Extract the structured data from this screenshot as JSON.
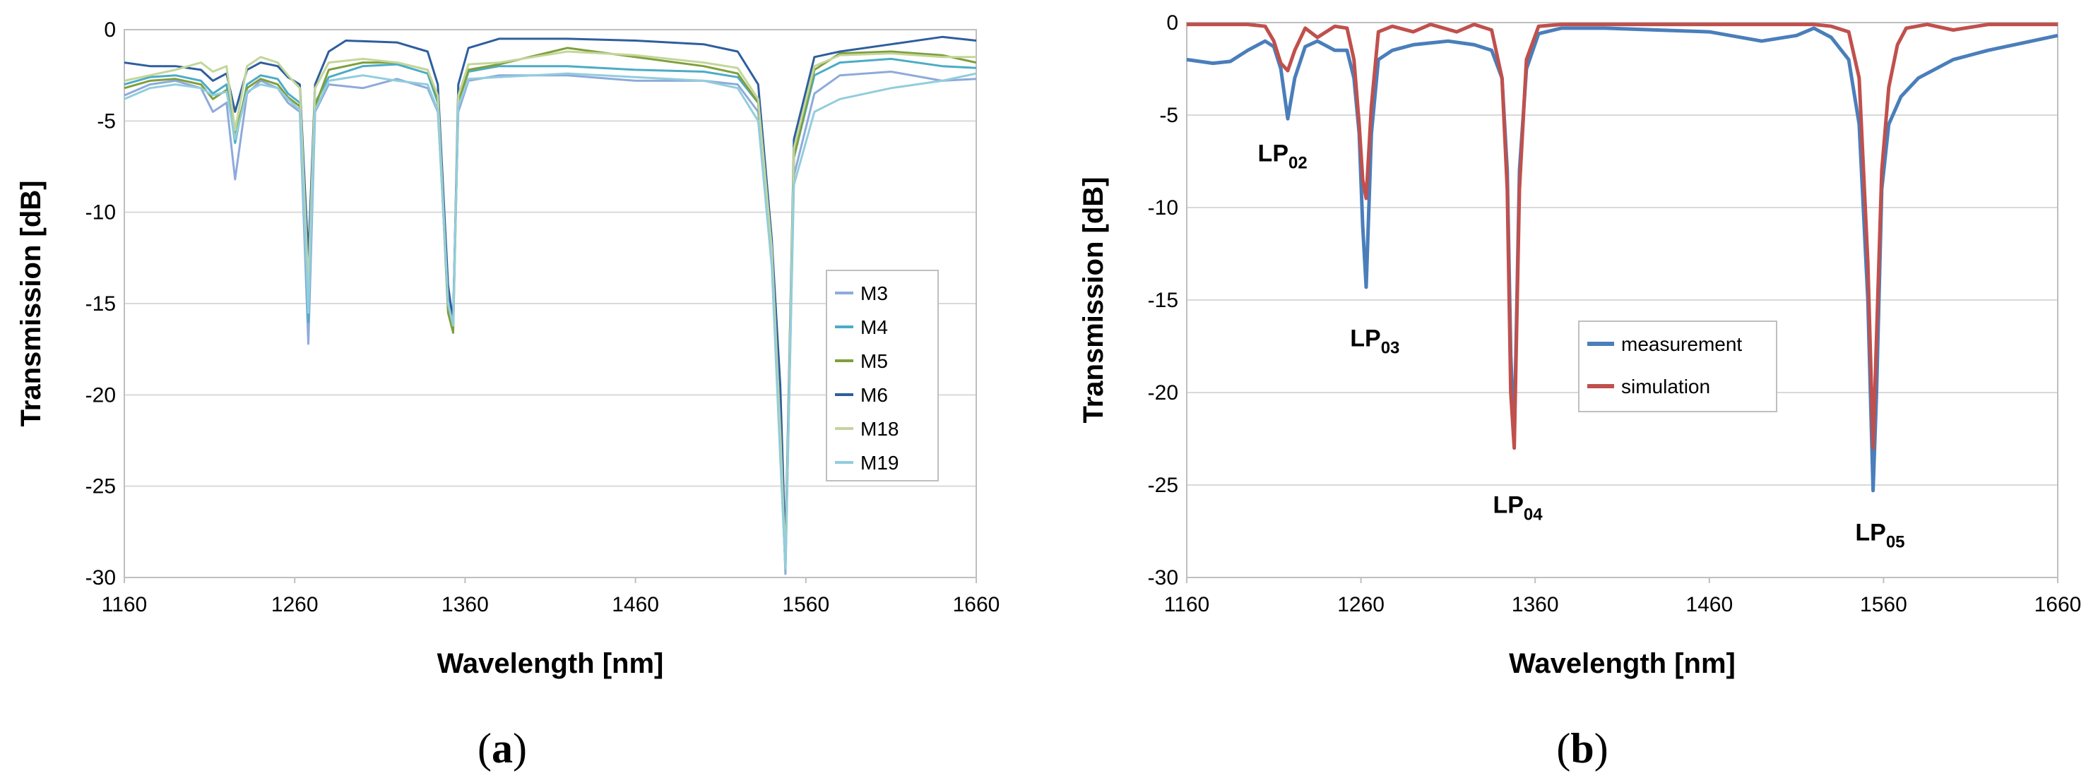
{
  "chart_data": [
    {
      "type": "line",
      "panel_label": "(a)",
      "title": "",
      "xlabel": "Wavelength [nm]",
      "ylabel": "Transmission [dB]",
      "xlim": [
        1160,
        1660
      ],
      "ylim": [
        -30,
        0
      ],
      "x_ticks": [
        "1160",
        "1260",
        "1360",
        "1460",
        "1560",
        "1660"
      ],
      "y_ticks": [
        "0",
        "-5",
        "-10",
        "-15",
        "-20",
        "-25",
        "-30"
      ],
      "legend": [
        "M3",
        "M4",
        "M5",
        "M6",
        "M18",
        "M19"
      ],
      "legend_position": "right",
      "series": [
        {
          "name": "M3",
          "color": "#8eaadb",
          "x": [
            1160,
            1175,
            1190,
            1205,
            1212,
            1220,
            1225,
            1232,
            1240,
            1250,
            1256,
            1263,
            1268,
            1272,
            1280,
            1300,
            1320,
            1338,
            1344,
            1350,
            1353,
            1356,
            1362,
            1380,
            1420,
            1460,
            1500,
            1520,
            1532,
            1540,
            1545,
            1548,
            1553,
            1565,
            1580,
            1610,
            1640,
            1660
          ],
          "y": [
            -3.6,
            -3.0,
            -2.8,
            -3.2,
            -4.5,
            -4.0,
            -8.2,
            -3.5,
            -2.8,
            -3.2,
            -4.0,
            -4.5,
            -17.2,
            -4.5,
            -3.0,
            -3.2,
            -2.7,
            -3.2,
            -4.5,
            -14.5,
            -15.5,
            -4.5,
            -2.8,
            -2.5,
            -2.5,
            -2.8,
            -2.8,
            -3.0,
            -4.5,
            -12.0,
            -22.0,
            -29.8,
            -8.0,
            -3.5,
            -2.5,
            -2.3,
            -2.8,
            -2.7
          ]
        },
        {
          "name": "M4",
          "color": "#4bacc6",
          "x": [
            1160,
            1175,
            1190,
            1205,
            1212,
            1220,
            1225,
            1232,
            1240,
            1250,
            1256,
            1263,
            1268,
            1272,
            1280,
            1300,
            1320,
            1338,
            1344,
            1350,
            1353,
            1356,
            1362,
            1380,
            1420,
            1460,
            1500,
            1520,
            1532,
            1540,
            1545,
            1548,
            1553,
            1565,
            1580,
            1610,
            1640,
            1660
          ],
          "y": [
            -3.0,
            -2.6,
            -2.5,
            -2.8,
            -3.5,
            -3.0,
            -6.2,
            -3.0,
            -2.5,
            -2.7,
            -3.5,
            -4.0,
            -16.0,
            -4.0,
            -2.6,
            -2.0,
            -1.9,
            -2.4,
            -4.0,
            -15.0,
            -16.0,
            -4.0,
            -2.3,
            -2.0,
            -2.0,
            -2.2,
            -2.3,
            -2.6,
            -4.0,
            -12.0,
            -22.5,
            -29.0,
            -7.0,
            -2.5,
            -1.8,
            -1.6,
            -2.0,
            -2.1
          ]
        },
        {
          "name": "M5",
          "color": "#7f9f3b",
          "x": [
            1160,
            1175,
            1190,
            1205,
            1212,
            1220,
            1225,
            1232,
            1240,
            1250,
            1256,
            1263,
            1268,
            1272,
            1280,
            1300,
            1320,
            1338,
            1344,
            1350,
            1353,
            1356,
            1362,
            1380,
            1420,
            1460,
            1500,
            1520,
            1532,
            1540,
            1545,
            1548,
            1553,
            1565,
            1580,
            1610,
            1640,
            1660
          ],
          "y": [
            -3.2,
            -2.8,
            -2.7,
            -3.0,
            -3.8,
            -3.3,
            -5.8,
            -3.2,
            -2.7,
            -3.0,
            -3.7,
            -4.2,
            -15.0,
            -4.2,
            -2.2,
            -1.8,
            -1.8,
            -2.2,
            -3.8,
            -15.5,
            -16.6,
            -4.0,
            -2.2,
            -1.9,
            -1.0,
            -1.5,
            -2.0,
            -2.4,
            -4.0,
            -12.0,
            -23.0,
            -29.5,
            -7.0,
            -2.2,
            -1.3,
            -1.2,
            -1.4,
            -1.8
          ]
        },
        {
          "name": "M6",
          "color": "#2e5e9e",
          "x": [
            1160,
            1175,
            1190,
            1205,
            1212,
            1220,
            1225,
            1232,
            1240,
            1250,
            1256,
            1263,
            1268,
            1272,
            1280,
            1290,
            1320,
            1338,
            1344,
            1350,
            1353,
            1356,
            1362,
            1380,
            1420,
            1460,
            1500,
            1520,
            1532,
            1540,
            1545,
            1548,
            1553,
            1565,
            1580,
            1610,
            1640,
            1660
          ],
          "y": [
            -1.8,
            -2.0,
            -2.0,
            -2.2,
            -2.8,
            -2.4,
            -4.5,
            -2.2,
            -1.8,
            -2.0,
            -2.6,
            -3.0,
            -12.5,
            -3.0,
            -1.2,
            -0.6,
            -0.7,
            -1.2,
            -3.0,
            -14.0,
            -16.0,
            -3.0,
            -1.0,
            -0.5,
            -0.5,
            -0.6,
            -0.8,
            -1.2,
            -3.0,
            -11.5,
            -19.5,
            -28.5,
            -6.0,
            -1.5,
            -1.2,
            -0.8,
            -0.4,
            -0.6
          ]
        },
        {
          "name": "M18",
          "color": "#c3d69b",
          "x": [
            1160,
            1175,
            1190,
            1205,
            1212,
            1220,
            1225,
            1232,
            1240,
            1250,
            1256,
            1263,
            1268,
            1272,
            1280,
            1300,
            1320,
            1338,
            1344,
            1350,
            1353,
            1356,
            1362,
            1380,
            1420,
            1460,
            1500,
            1520,
            1532,
            1540,
            1545,
            1548,
            1553,
            1565,
            1580,
            1610,
            1640,
            1660
          ],
          "y": [
            -2.8,
            -2.5,
            -2.2,
            -1.8,
            -2.3,
            -2.0,
            -5.5,
            -2.0,
            -1.5,
            -1.8,
            -2.5,
            -3.2,
            -14.0,
            -3.2,
            -1.8,
            -1.6,
            -1.8,
            -2.2,
            -3.6,
            -15.0,
            -16.2,
            -3.6,
            -1.9,
            -1.8,
            -1.2,
            -1.4,
            -1.8,
            -2.1,
            -3.8,
            -12.0,
            -22.0,
            -29.2,
            -6.5,
            -2.0,
            -1.4,
            -1.3,
            -1.5,
            -1.5
          ]
        },
        {
          "name": "M19",
          "color": "#92cddc",
          "x": [
            1160,
            1175,
            1190,
            1205,
            1212,
            1220,
            1225,
            1232,
            1240,
            1250,
            1256,
            1263,
            1268,
            1272,
            1280,
            1300,
            1320,
            1338,
            1344,
            1350,
            1353,
            1356,
            1362,
            1380,
            1420,
            1460,
            1500,
            1520,
            1532,
            1540,
            1545,
            1548,
            1553,
            1565,
            1580,
            1610,
            1640,
            1660
          ],
          "y": [
            -3.8,
            -3.2,
            -3.0,
            -3.2,
            -3.6,
            -3.4,
            -6.0,
            -3.4,
            -3.0,
            -3.2,
            -3.8,
            -4.4,
            -15.5,
            -4.4,
            -2.8,
            -2.5,
            -2.8,
            -3.0,
            -4.4,
            -15.0,
            -16.2,
            -4.2,
            -2.7,
            -2.6,
            -2.4,
            -2.6,
            -2.8,
            -3.2,
            -5.0,
            -13.0,
            -23.5,
            -29.5,
            -8.5,
            -4.5,
            -3.8,
            -3.2,
            -2.8,
            -2.4
          ]
        }
      ]
    },
    {
      "type": "line",
      "panel_label": "(b)",
      "title": "",
      "xlabel": "Wavelength [nm]",
      "ylabel": "Transmission [dB]",
      "xlim": [
        1160,
        1660
      ],
      "ylim": [
        -30,
        0
      ],
      "x_ticks": [
        "1160",
        "1260",
        "1360",
        "1460",
        "1560",
        "1660"
      ],
      "y_ticks": [
        "0",
        "-5",
        "-10",
        "-15",
        "-20",
        "-25",
        "-30"
      ],
      "legend": [
        "measurement",
        "simulation"
      ],
      "legend_position": "center",
      "annotations": [
        {
          "base": "LP",
          "sub": "02",
          "x": 1215,
          "y": -7.5
        },
        {
          "base": "LP",
          "sub": "03",
          "x": 1268,
          "y": -17.5
        },
        {
          "base": "LP",
          "sub": "04",
          "x": 1350,
          "y": -26.5
        },
        {
          "base": "LP",
          "sub": "05",
          "x": 1558,
          "y": -28.0
        }
      ],
      "series": [
        {
          "name": "measurement",
          "color": "#4a7ebb",
          "x": [
            1160,
            1175,
            1185,
            1195,
            1205,
            1210,
            1214,
            1218,
            1222,
            1228,
            1235,
            1245,
            1252,
            1256,
            1259,
            1261,
            1263,
            1266,
            1270,
            1278,
            1290,
            1310,
            1325,
            1335,
            1341,
            1344,
            1346,
            1348,
            1351,
            1355,
            1362,
            1375,
            1400,
            1430,
            1460,
            1490,
            1510,
            1520,
            1530,
            1540,
            1546,
            1551,
            1554,
            1556,
            1559,
            1563,
            1570,
            1580,
            1600,
            1620,
            1640,
            1660
          ],
          "y": [
            -2.0,
            -2.2,
            -2.1,
            -1.5,
            -1.0,
            -1.3,
            -2.5,
            -5.2,
            -3.0,
            -1.3,
            -1.0,
            -1.5,
            -1.5,
            -3.0,
            -6.0,
            -11.0,
            -14.3,
            -6.0,
            -2.0,
            -1.5,
            -1.2,
            -1.0,
            -1.2,
            -1.5,
            -3.0,
            -8.0,
            -18.0,
            -22.5,
            -8.0,
            -2.5,
            -0.6,
            -0.3,
            -0.3,
            -0.4,
            -0.5,
            -1.0,
            -0.7,
            -0.3,
            -0.8,
            -2.0,
            -5.5,
            -15.0,
            -25.3,
            -20.0,
            -9.0,
            -5.5,
            -4.0,
            -3.0,
            -2.0,
            -1.5,
            -1.1,
            -0.7
          ]
        },
        {
          "name": "simulation",
          "color": "#c0504d",
          "x": [
            1160,
            1180,
            1195,
            1205,
            1210,
            1214,
            1218,
            1222,
            1228,
            1235,
            1245,
            1252,
            1256,
            1259,
            1261,
            1263,
            1266,
            1270,
            1278,
            1290,
            1300,
            1315,
            1325,
            1335,
            1341,
            1344,
            1346,
            1348,
            1351,
            1355,
            1362,
            1375,
            1400,
            1460,
            1500,
            1520,
            1530,
            1540,
            1546,
            1551,
            1554,
            1556,
            1559,
            1563,
            1568,
            1573,
            1585,
            1600,
            1620,
            1640,
            1660
          ],
          "y": [
            -0.1,
            -0.1,
            -0.1,
            -0.2,
            -1.0,
            -2.2,
            -2.6,
            -1.5,
            -0.3,
            -0.8,
            -0.2,
            -0.3,
            -2.0,
            -5.5,
            -8.5,
            -9.5,
            -4.5,
            -0.5,
            -0.2,
            -0.5,
            -0.1,
            -0.5,
            -0.1,
            -0.4,
            -3.0,
            -9.0,
            -20.0,
            -23.0,
            -9.0,
            -2.0,
            -0.2,
            -0.1,
            -0.1,
            -0.1,
            -0.1,
            -0.1,
            -0.2,
            -0.5,
            -3.0,
            -13.0,
            -23.0,
            -17.0,
            -8.0,
            -3.5,
            -1.2,
            -0.3,
            -0.1,
            -0.4,
            -0.1,
            -0.1,
            -0.1
          ]
        }
      ]
    }
  ]
}
